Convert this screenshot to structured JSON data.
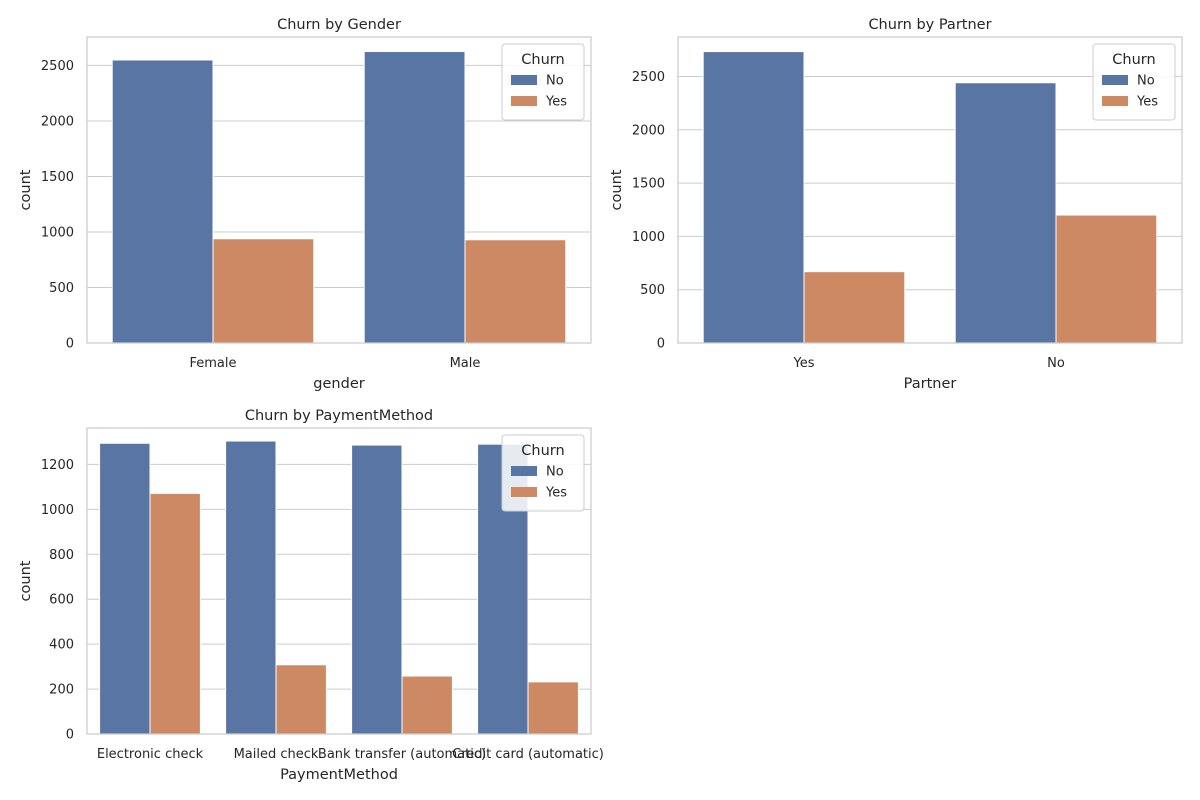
{
  "chart_data": [
    {
      "type": "bar",
      "title": "Churn by Gender",
      "xlabel": "gender",
      "ylabel": "count",
      "categories": [
        "Female",
        "Male"
      ],
      "series": [
        {
          "name": "No",
          "values": [
            2549,
            2625
          ]
        },
        {
          "name": "Yes",
          "values": [
            939,
            930
          ]
        }
      ],
      "yticks": [
        0,
        500,
        1000,
        1500,
        2000,
        2500
      ],
      "ylim": [
        0,
        2756
      ],
      "grid": true,
      "legend_title": "Churn",
      "legend_position": "top-right"
    },
    {
      "type": "bar",
      "title": "Churn by Partner",
      "xlabel": "Partner",
      "ylabel": "count",
      "categories": [
        "Yes",
        "No"
      ],
      "series": [
        {
          "name": "No",
          "values": [
            2733,
            2441
          ]
        },
        {
          "name": "Yes",
          "values": [
            669,
            1200
          ]
        }
      ],
      "yticks": [
        0,
        500,
        1000,
        1500,
        2000,
        2500
      ],
      "ylim": [
        0,
        2870
      ],
      "grid": true,
      "legend_title": "Churn",
      "legend_position": "top-right"
    },
    {
      "type": "bar",
      "title": "Churn by PaymentMethod",
      "xlabel": "PaymentMethod",
      "ylabel": "count",
      "categories": [
        "Electronic check",
        "Mailed check",
        "Bank transfer (automatic)",
        "Credit card (automatic)"
      ],
      "series": [
        {
          "name": "No",
          "values": [
            1294,
            1304,
            1286,
            1290
          ]
        },
        {
          "name": "Yes",
          "values": [
            1071,
            308,
            258,
            232
          ]
        }
      ],
      "yticks": [
        0,
        200,
        400,
        600,
        800,
        1000,
        1200
      ],
      "ylim": [
        0,
        1362
      ],
      "grid": true,
      "legend_title": "Churn",
      "legend_position": "top-right"
    }
  ],
  "colors": {
    "No": "#5875a4",
    "Yes": "#cc8963"
  }
}
